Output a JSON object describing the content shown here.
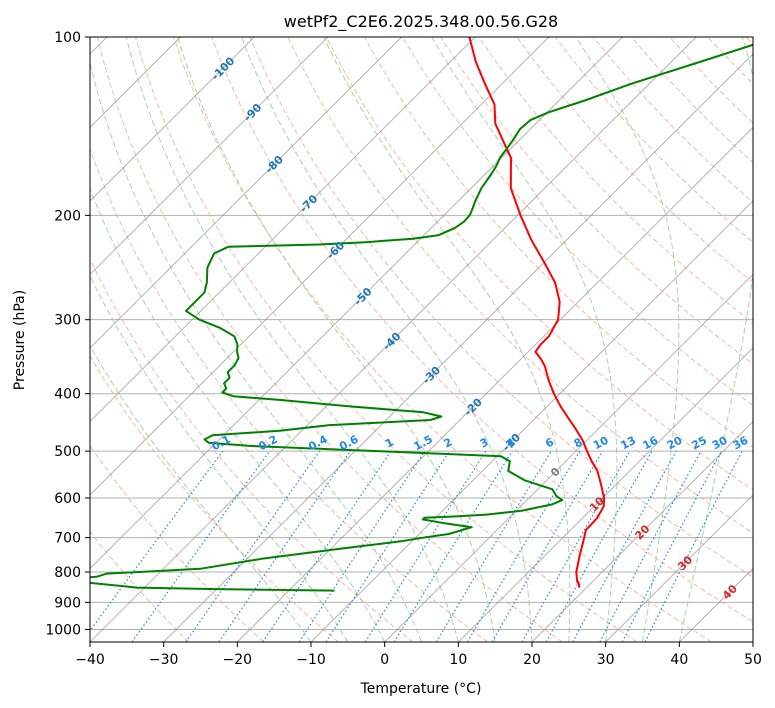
{
  "chart_data": {
    "type": "skew-t",
    "title": "wetPf2_C2E6.2025.348.00.56.G28",
    "xlabel": "Temperature (°C)",
    "ylabel": "Pressure (hPa)",
    "xlim": [
      -40,
      50
    ],
    "ylim": [
      1050,
      100
    ],
    "x_ticks": [
      "−40",
      "−30",
      "−20",
      "−10",
      "0",
      "10",
      "20",
      "30",
      "40",
      "50"
    ],
    "x_tick_values": [
      -40,
      -30,
      -20,
      -10,
      0,
      10,
      20,
      30,
      40,
      50
    ],
    "y_ticks": [
      "100",
      "200",
      "300",
      "400",
      "500",
      "600",
      "700",
      "800",
      "900",
      "1000"
    ],
    "y_tick_values": [
      100,
      200,
      300,
      400,
      500,
      600,
      700,
      800,
      900,
      1000
    ],
    "colors": {
      "temperature": "#ff0000",
      "dewpoint": "#008000",
      "isotherm": "#999999",
      "dry_adiabat": "#ff9e80",
      "moist_adiabat": "#8fcc8f",
      "mixing_ratio": "#1e88e5",
      "isotherm_label": "#1f77b4",
      "freezing_label": "#808080",
      "warm_label": "#d62728"
    },
    "isotherm_labels": [
      {
        "text": "-100",
        "t": -100,
        "p": 113
      },
      {
        "text": "-90",
        "t": -90,
        "p": 134
      },
      {
        "text": "-80",
        "t": -80,
        "p": 164
      },
      {
        "text": "-70",
        "t": -70,
        "p": 191
      },
      {
        "text": "-60",
        "t": -60,
        "p": 229
      },
      {
        "text": "-50",
        "t": -50,
        "p": 274
      },
      {
        "text": "-40",
        "t": -40,
        "p": 326
      },
      {
        "text": "-30",
        "t": -30,
        "p": 372
      },
      {
        "text": "-20",
        "t": -20,
        "p": 421
      },
      {
        "text": "-10",
        "t": -10,
        "p": 483
      },
      {
        "text": "0",
        "t": 0,
        "p": 542
      },
      {
        "text": "10",
        "t": 10,
        "p": 614
      },
      {
        "text": "20",
        "t": 20,
        "p": 685
      },
      {
        "text": "30",
        "t": 30,
        "p": 772
      },
      {
        "text": "40",
        "t": 40,
        "p": 864
      }
    ],
    "mixing_ratio_labels": [
      {
        "text": "0.1",
        "w": 0.1
      },
      {
        "text": "0.2",
        "w": 0.2
      },
      {
        "text": "0.4",
        "w": 0.4
      },
      {
        "text": "0.6",
        "w": 0.6
      },
      {
        "text": "1",
        "w": 1
      },
      {
        "text": "1.5",
        "w": 1.5
      },
      {
        "text": "2",
        "w": 2
      },
      {
        "text": "3",
        "w": 3
      },
      {
        "text": "4",
        "w": 4
      },
      {
        "text": "6",
        "w": 6
      },
      {
        "text": "8",
        "w": 8
      },
      {
        "text": "10",
        "w": 10
      },
      {
        "text": "13",
        "w": 13
      },
      {
        "text": "16",
        "w": 16
      },
      {
        "text": "20",
        "w": 20
      },
      {
        "text": "25",
        "w": 25
      },
      {
        "text": "30",
        "w": 30
      },
      {
        "text": "36",
        "w": 36
      }
    ],
    "mixing_ratio_label_pressure": 500,
    "series": [
      {
        "name": "temperature",
        "points": [
          [
            850,
            19.0
          ],
          [
            840,
            18.6
          ],
          [
            830,
            17.9
          ],
          [
            800,
            16.5
          ],
          [
            750,
            14.7
          ],
          [
            700,
            12.9
          ],
          [
            680,
            12.1
          ],
          [
            650,
            12.0
          ],
          [
            620,
            11.3
          ],
          [
            600,
            10.2
          ],
          [
            570,
            8.0
          ],
          [
            540,
            5.6
          ],
          [
            520,
            3.5
          ],
          [
            500,
            1.5
          ],
          [
            480,
            -0.5
          ],
          [
            460,
            -2.9
          ],
          [
            440,
            -5.5
          ],
          [
            420,
            -8.2
          ],
          [
            400,
            -10.8
          ],
          [
            380,
            -13.3
          ],
          [
            360,
            -15.7
          ],
          [
            350,
            -17.2
          ],
          [
            340,
            -19.0
          ],
          [
            330,
            -19.3
          ],
          [
            320,
            -19.3
          ],
          [
            300,
            -20.3
          ],
          [
            280,
            -22.5
          ],
          [
            260,
            -25.7
          ],
          [
            240,
            -30.0
          ],
          [
            220,
            -34.8
          ],
          [
            200,
            -39.6
          ],
          [
            180,
            -44.6
          ],
          [
            160,
            -48.7
          ],
          [
            150,
            -52.0
          ],
          [
            140,
            -55.5
          ],
          [
            130,
            -58.2
          ],
          [
            120,
            -62.3
          ],
          [
            110,
            -66.6
          ],
          [
            100,
            -70.8
          ]
        ]
      },
      {
        "name": "dewpoint",
        "points": [
          [
            860,
            -13.8
          ],
          [
            855,
            -30.0
          ],
          [
            850,
            -41.0
          ],
          [
            830,
            -50.0
          ],
          [
            828,
            -53.0
          ],
          [
            825,
            -53.0
          ],
          [
            815,
            -48.0
          ],
          [
            805,
            -47.0
          ],
          [
            790,
            -35.0
          ],
          [
            760,
            -28.0
          ],
          [
            730,
            -18.5
          ],
          [
            710,
            -11.5
          ],
          [
            700,
            -9.0
          ],
          [
            690,
            -6.0
          ],
          [
            672,
            -3.8
          ],
          [
            662,
            -8.0
          ],
          [
            652,
            -11.5
          ],
          [
            648,
            -11.5
          ],
          [
            645,
            -8.0
          ],
          [
            640,
            -3.5
          ],
          [
            630,
            0.8
          ],
          [
            615,
            4.0
          ],
          [
            605,
            4.8
          ],
          [
            595,
            3.4
          ],
          [
            580,
            2.0
          ],
          [
            560,
            -3.0
          ],
          [
            540,
            -6.5
          ],
          [
            520,
            -7.6
          ],
          [
            510,
            -9.5
          ],
          [
            500,
            -27.0
          ],
          [
            490,
            -45.0
          ],
          [
            484,
            -51.0
          ],
          [
            478,
            -52.0
          ],
          [
            470,
            -51.5
          ],
          [
            462,
            -43.0
          ],
          [
            452,
            -37.0
          ],
          [
            443,
            -24.0
          ],
          [
            437,
            -23.0
          ],
          [
            430,
            -26.0
          ],
          [
            420,
            -37.0
          ],
          [
            410,
            -47.0
          ],
          [
            404,
            -54.0
          ],
          [
            398,
            -56.0
          ],
          [
            392,
            -56.0
          ],
          [
            384,
            -57.0
          ],
          [
            376,
            -57.0
          ],
          [
            368,
            -58.0
          ],
          [
            358,
            -58.0
          ],
          [
            348,
            -58.5
          ],
          [
            340,
            -59.5
          ],
          [
            330,
            -60.5
          ],
          [
            320,
            -62.0
          ],
          [
            310,
            -65.0
          ],
          [
            300,
            -69.0
          ],
          [
            290,
            -72.0
          ],
          [
            270,
            -72.0
          ],
          [
            260,
            -73.0
          ],
          [
            245,
            -75.0
          ],
          [
            232,
            -76.0
          ],
          [
            226,
            -75.0
          ],
          [
            224,
            -63.0
          ],
          [
            222,
            -57.0
          ],
          [
            219,
            -51.0
          ],
          [
            216,
            -48.0
          ],
          [
            210,
            -46.8
          ],
          [
            205,
            -46.4
          ],
          [
            200,
            -46.5
          ],
          [
            195,
            -47.0
          ],
          [
            190,
            -47.6
          ],
          [
            180,
            -48.6
          ],
          [
            170,
            -49.2
          ],
          [
            165,
            -49.6
          ],
          [
            160,
            -50.2
          ],
          [
            150,
            -50.8
          ],
          [
            143,
            -51.4
          ],
          [
            138,
            -51.2
          ],
          [
            134,
            -49.8
          ],
          [
            128,
            -46.5
          ],
          [
            120,
            -42.5
          ],
          [
            110,
            -36.0
          ],
          [
            100,
            -29.0
          ]
        ]
      }
    ]
  }
}
